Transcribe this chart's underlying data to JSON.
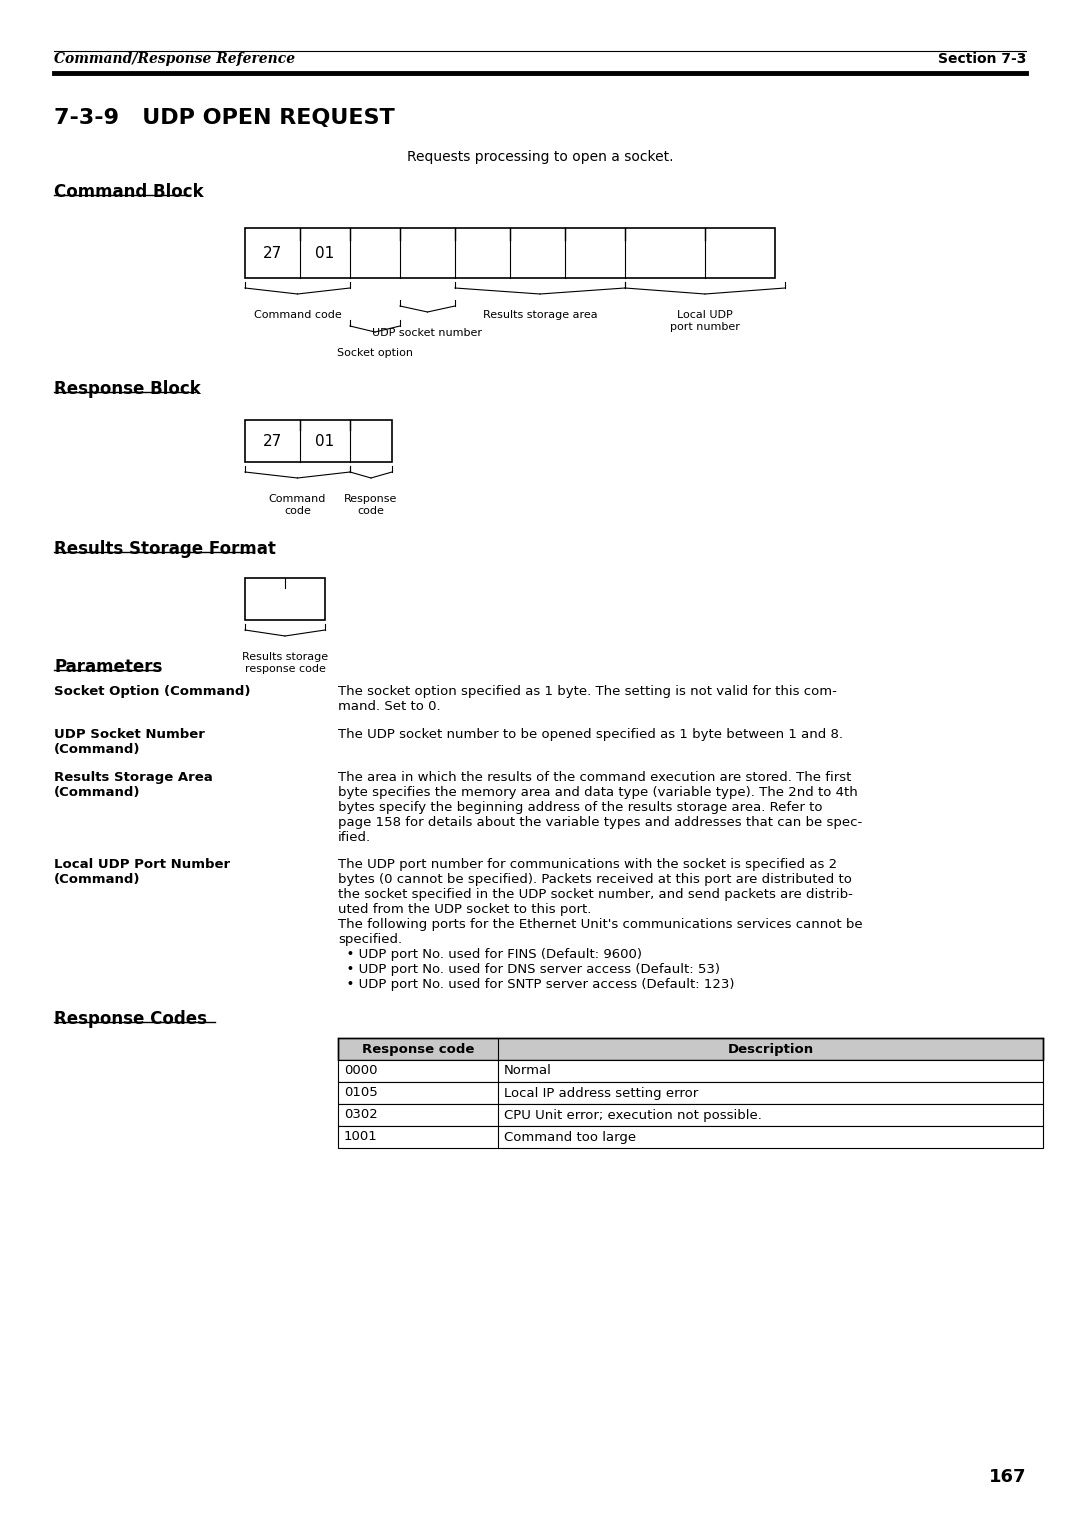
{
  "page_number": "167",
  "header_left": "Command/Response Reference",
  "header_right": "Section 7-3",
  "section_title": "7-3-9   UDP OPEN REQUEST",
  "subtitle": "Requests processing to open a socket.",
  "command_block_title": "Command Block",
  "response_block_title": "Response Block",
  "results_storage_title": "Results Storage Format",
  "parameters_title": "Parameters",
  "response_codes_title": "Response Codes",
  "results_annotation": "Results storage\nresponse code",
  "param_terms": [
    "Socket Option (Command)",
    "UDP Socket Number\n(Command)",
    "Results Storage Area\n(Command)",
    "Local UDP Port Number\n(Command)"
  ],
  "param_descs": [
    "The socket option specified as 1 byte. The setting is not valid for this com-\nmand. Set to 0.",
    "The UDP socket number to be opened specified as 1 byte between 1 and 8.",
    "The area in which the results of the command execution are stored. The first\nbyte specifies the memory area and data type (variable type). The 2nd to 4th\nbytes specify the beginning address of the results storage area. Refer to\npage 158 for details about the variable types and addresses that can be spec-\nified.",
    "The UDP port number for communications with the socket is specified as 2\nbytes (0 cannot be specified). Packets received at this port are distributed to\nthe socket specified in the UDP socket number, and send packets are distrib-\nuted from the UDP socket to this port.\nThe following ports for the Ethernet Unit's communications services cannot be\nspecified.\n  • UDP port No. used for FINS (Default: 9600)\n  • UDP port No. used for DNS server access (Default: 53)\n  • UDP port No. used for SNTP server access (Default: 123)"
  ],
  "response_codes_headers": [
    "Response code",
    "Description"
  ],
  "response_codes_rows": [
    [
      "0000",
      "Normal"
    ],
    [
      "0105",
      "Local IP address setting error"
    ],
    [
      "0302",
      "CPU Unit error; execution not possible."
    ],
    [
      "1001",
      "Command too large"
    ]
  ],
  "bg_color": "#ffffff",
  "text_color": "#000000",
  "table_header_bg": "#c8c8c8"
}
